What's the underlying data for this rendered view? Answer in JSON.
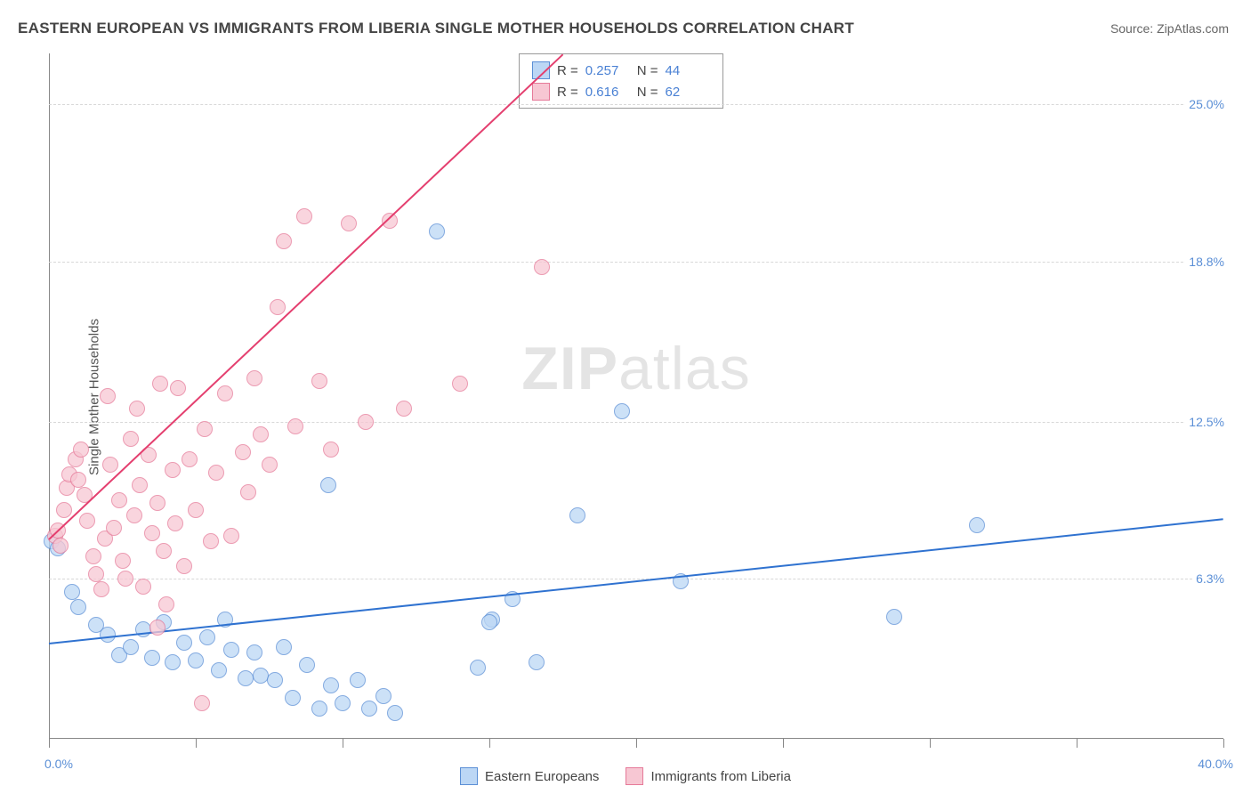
{
  "title": "EASTERN EUROPEAN VS IMMIGRANTS FROM LIBERIA SINGLE MOTHER HOUSEHOLDS CORRELATION CHART",
  "source_prefix": "Source: ",
  "source": "ZipAtlas.com",
  "ylabel": "Single Mother Households",
  "watermark_bold": "ZIP",
  "watermark_rest": "atlas",
  "chart": {
    "type": "scatter",
    "xlim": [
      0,
      40
    ],
    "ylim": [
      0,
      27
    ],
    "x_start_label": "0.0%",
    "x_end_label": "40.0%",
    "yticks": [
      {
        "v": 6.3,
        "label": "6.3%"
      },
      {
        "v": 12.5,
        "label": "12.5%"
      },
      {
        "v": 18.8,
        "label": "18.8%"
      },
      {
        "v": 25.0,
        "label": "25.0%"
      }
    ],
    "xticks_major": [
      0,
      5,
      10,
      15,
      20,
      25,
      30,
      35,
      40
    ],
    "background_color": "#ffffff",
    "grid_color": "#d8d8d8",
    "axis_color": "#888888",
    "series": [
      {
        "key": "eastern",
        "label": "Eastern Europeans",
        "r_label": "R =",
        "r_value": "0.257",
        "n_label": "N =",
        "n_value": "44",
        "fill": "#bcd7f5",
        "stroke": "#5b8fd6",
        "trend_color": "#2f72d0",
        "marker_radius": 8,
        "trend": {
          "x1": 0,
          "y1": 3.8,
          "x2": 40,
          "y2": 8.7
        },
        "points": [
          [
            0.1,
            7.8
          ],
          [
            0.3,
            7.5
          ],
          [
            0.8,
            5.8
          ],
          [
            1.0,
            5.2
          ],
          [
            1.6,
            4.5
          ],
          [
            2.0,
            4.1
          ],
          [
            2.4,
            3.3
          ],
          [
            2.8,
            3.6
          ],
          [
            3.2,
            4.3
          ],
          [
            3.5,
            3.2
          ],
          [
            3.9,
            4.6
          ],
          [
            4.2,
            3.0
          ],
          [
            4.6,
            3.8
          ],
          [
            5.0,
            3.1
          ],
          [
            5.4,
            4.0
          ],
          [
            5.8,
            2.7
          ],
          [
            6.2,
            3.5
          ],
          [
            6.7,
            2.4
          ],
          [
            7.0,
            3.4
          ],
          [
            7.2,
            2.5
          ],
          [
            7.7,
            2.3
          ],
          [
            8.0,
            3.6
          ],
          [
            8.3,
            1.6
          ],
          [
            8.8,
            2.9
          ],
          [
            9.2,
            1.2
          ],
          [
            9.6,
            2.1
          ],
          [
            10.0,
            1.4
          ],
          [
            10.5,
            2.3
          ],
          [
            10.9,
            1.2
          ],
          [
            11.4,
            1.7
          ],
          [
            11.8,
            1.0
          ],
          [
            9.5,
            10.0
          ],
          [
            13.2,
            20.0
          ],
          [
            14.6,
            2.8
          ],
          [
            15.1,
            4.7
          ],
          [
            15.8,
            5.5
          ],
          [
            16.6,
            3.0
          ],
          [
            18.0,
            8.8
          ],
          [
            19.5,
            12.9
          ],
          [
            21.5,
            6.2
          ],
          [
            28.8,
            4.8
          ],
          [
            31.6,
            8.4
          ],
          [
            15.0,
            4.6
          ],
          [
            6.0,
            4.7
          ]
        ]
      },
      {
        "key": "liberia",
        "label": "Immigrants from Liberia",
        "r_label": "R =",
        "r_value": "0.616",
        "n_label": "N =",
        "n_value": "62",
        "fill": "#f7c7d3",
        "stroke": "#e67a99",
        "trend_color": "#e43f6f",
        "marker_radius": 8,
        "trend": {
          "x1": 0,
          "y1": 7.9,
          "x2": 17.5,
          "y2": 27.0
        },
        "points": [
          [
            0.2,
            8.0
          ],
          [
            0.3,
            8.2
          ],
          [
            0.4,
            7.6
          ],
          [
            0.5,
            9.0
          ],
          [
            0.6,
            9.9
          ],
          [
            0.7,
            10.4
          ],
          [
            0.9,
            11.0
          ],
          [
            1.0,
            10.2
          ],
          [
            1.1,
            11.4
          ],
          [
            1.2,
            9.6
          ],
          [
            1.3,
            8.6
          ],
          [
            1.5,
            7.2
          ],
          [
            1.6,
            6.5
          ],
          [
            1.8,
            5.9
          ],
          [
            1.9,
            7.9
          ],
          [
            2.0,
            13.5
          ],
          [
            2.1,
            10.8
          ],
          [
            2.2,
            8.3
          ],
          [
            2.4,
            9.4
          ],
          [
            2.5,
            7.0
          ],
          [
            2.6,
            6.3
          ],
          [
            2.8,
            11.8
          ],
          [
            2.9,
            8.8
          ],
          [
            3.0,
            13.0
          ],
          [
            3.1,
            10.0
          ],
          [
            3.2,
            6.0
          ],
          [
            3.4,
            11.2
          ],
          [
            3.5,
            8.1
          ],
          [
            3.7,
            9.3
          ],
          [
            3.8,
            14.0
          ],
          [
            3.9,
            7.4
          ],
          [
            4.0,
            5.3
          ],
          [
            4.2,
            10.6
          ],
          [
            4.3,
            8.5
          ],
          [
            4.4,
            13.8
          ],
          [
            4.6,
            6.8
          ],
          [
            4.8,
            11.0
          ],
          [
            5.0,
            9.0
          ],
          [
            5.2,
            1.4
          ],
          [
            5.3,
            12.2
          ],
          [
            5.5,
            7.8
          ],
          [
            5.7,
            10.5
          ],
          [
            6.0,
            13.6
          ],
          [
            6.2,
            8.0
          ],
          [
            6.6,
            11.3
          ],
          [
            6.8,
            9.7
          ],
          [
            7.0,
            14.2
          ],
          [
            7.2,
            12.0
          ],
          [
            7.5,
            10.8
          ],
          [
            7.8,
            17.0
          ],
          [
            8.0,
            19.6
          ],
          [
            8.4,
            12.3
          ],
          [
            8.7,
            20.6
          ],
          [
            9.2,
            14.1
          ],
          [
            9.6,
            11.4
          ],
          [
            10.2,
            20.3
          ],
          [
            10.8,
            12.5
          ],
          [
            11.6,
            20.4
          ],
          [
            12.1,
            13.0
          ],
          [
            14.0,
            14.0
          ],
          [
            16.8,
            18.6
          ],
          [
            3.7,
            4.4
          ]
        ]
      }
    ]
  }
}
